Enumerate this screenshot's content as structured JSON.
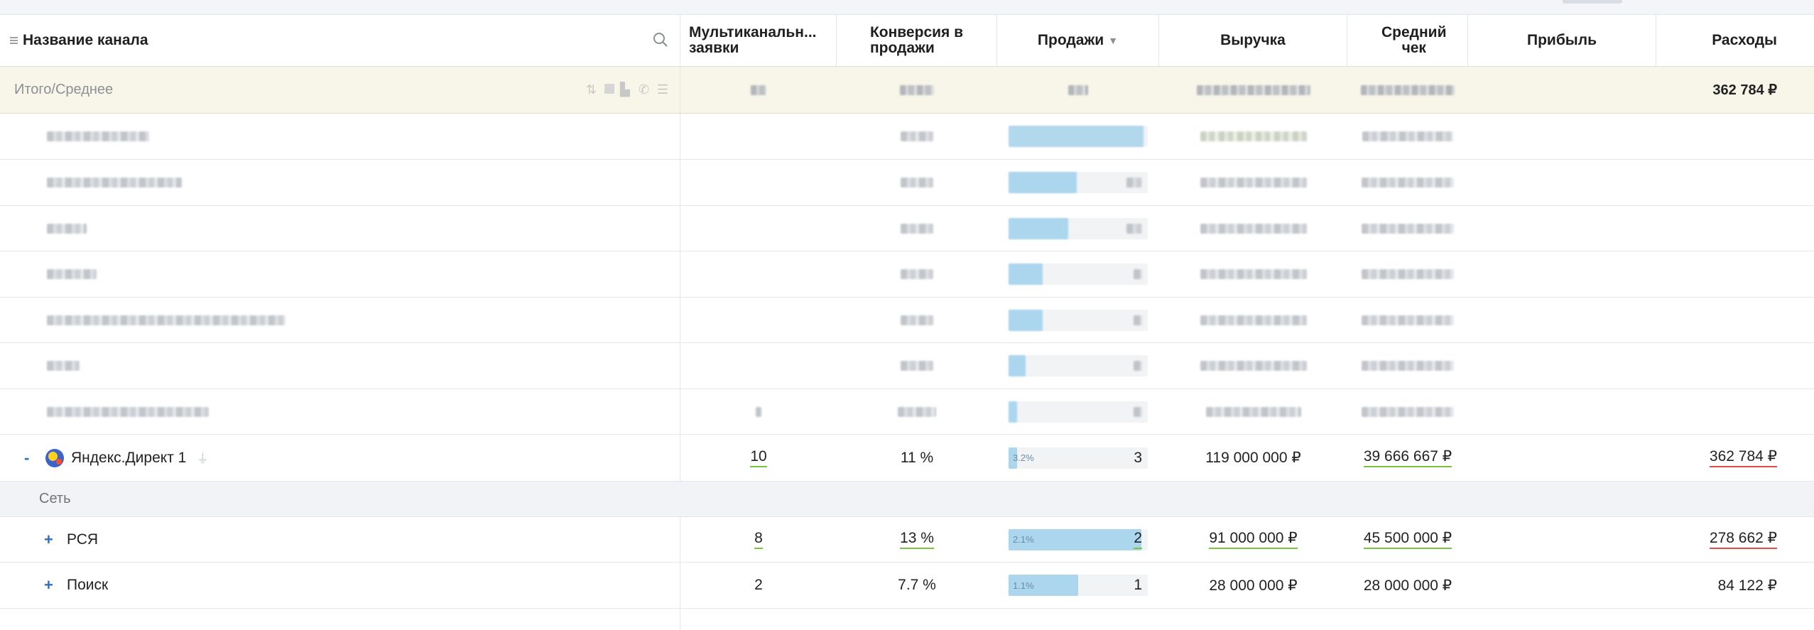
{
  "header": {
    "channel_name": "Название канала",
    "multichannel": "Мультиканальн...",
    "multichannel_line2": "заявки",
    "conversion": "Конверсия в",
    "conversion_line2": "продажи",
    "sales": "Продажи",
    "sales_sort": "▼",
    "revenue": "Выручка",
    "avg_check": "Средний",
    "avg_check_line2": "чек",
    "profit": "Прибыль",
    "costs": "Расходы"
  },
  "total": {
    "label": "Итого/Среднее",
    "costs": "362 784 ₽"
  },
  "yandex": {
    "toggle": "-",
    "name": "Яндекс.Директ 1",
    "multichannel": "10",
    "conversion": "11 %",
    "sales_pct": "3.2%",
    "sales_fill": 0.032,
    "sales": "3",
    "revenue": "119 000 000 ₽",
    "avg_check": "39 666 667 ₽",
    "costs": "362 784 ₽"
  },
  "group_net": {
    "label": "Сеть"
  },
  "rsya": {
    "toggle": "+",
    "name": "РСЯ",
    "multichannel": "8",
    "conversion": "13 %",
    "sales_pct": "2.1%",
    "sales_fill": 0.021,
    "sales": "2",
    "revenue": "91 000 000 ₽",
    "avg_check": "45 500 000 ₽",
    "costs": "278 662 ₽"
  },
  "search": {
    "toggle": "+",
    "name": "Поиск",
    "multichannel": "2",
    "conversion": "7.7 %",
    "sales_pct": "1.1%",
    "sales_fill": 0.011,
    "sales": "1",
    "revenue": "28 000 000 ₽",
    "avg_check": "28 000 000 ₽",
    "costs": "84 122 ₽"
  },
  "colors": {
    "accent_blue": "#2f6fbf",
    "bar_fill": "#acd6ee",
    "underline_green": "#7cc243",
    "underline_red": "#e14b4b",
    "total_row_bg": "#f8f6e8"
  }
}
